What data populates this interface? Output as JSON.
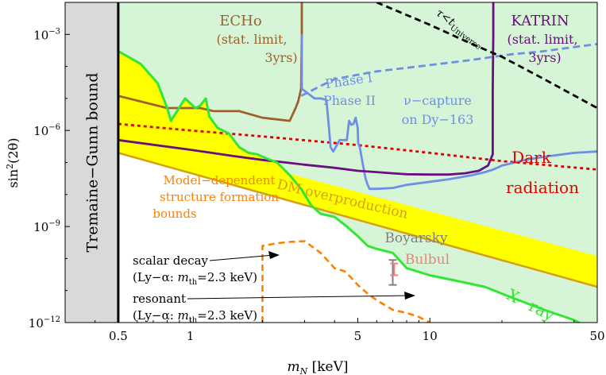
{
  "chart_data": {
    "type": "line",
    "xlabel_main": "m",
    "xlabel_sub": "N",
    "xlabel_unit": " [keV]",
    "ylabel_main": "sin",
    "ylabel_sup": "2",
    "ylabel_arg": "(2θ)",
    "x_scale": "log",
    "y_scale": "log",
    "xlim": [
      0.3,
      50
    ],
    "ylim": [
      1e-12,
      0.01
    ],
    "x_ticks": [
      {
        "value": 0.5,
        "label": "0.5"
      },
      {
        "value": 1,
        "label": "1"
      },
      {
        "value": 5,
        "label": "5"
      },
      {
        "value": 10,
        "label": "10"
      },
      {
        "value": 50,
        "label": "50"
      }
    ],
    "y_ticks": [
      {
        "value": 1e-12,
        "base": "10",
        "exp": "−12"
      },
      {
        "value": 1e-09,
        "base": "10",
        "exp": "−9"
      },
      {
        "value": 1e-06,
        "base": "10",
        "exp": "−6"
      },
      {
        "value": 0.001,
        "base": "10",
        "exp": "−3"
      }
    ],
    "colors": {
      "excluded_fill": "#d6f5d6",
      "yellow_fill": "#ffff00",
      "gray_band": "#d9d9d9",
      "xray": "#33e633",
      "tremaine_line": "#000000",
      "dm_over_line": "#d4a017",
      "echo": "#a0602a",
      "katrin": "#6a0f80",
      "phase": "#6f8fe6",
      "dark_radiation": "#e00000",
      "structure": "#ff8000",
      "lifetime": "#000000",
      "boyarsky": "#808080",
      "bulbul": "#f08080"
    },
    "series": [
      {
        "name": "X-ray",
        "x": [
          0.5,
          0.62,
          0.73,
          0.8,
          0.83,
          0.88,
          0.95,
          1.0,
          1.05,
          1.1,
          1.16,
          1.2,
          1.3,
          1.45,
          1.6,
          1.75,
          1.9,
          2.1,
          2.3,
          2.6,
          2.9,
          3.2,
          3.5,
          4.0,
          4.5,
          5.0,
          5.5,
          6.0,
          7.0,
          8.0,
          10.0,
          13.0,
          17.0,
          22.0,
          30.0,
          40.0,
          50.0
        ],
        "y": [
          0.0003,
          0.00012,
          3e-05,
          5e-06,
          2e-06,
          4e-06,
          1e-05,
          7e-06,
          5e-06,
          6e-06,
          1e-05,
          2.7e-06,
          1.2e-06,
          8e-07,
          3e-07,
          2e-07,
          1.8e-07,
          1.3e-07,
          1e-07,
          4e-08,
          1.5e-08,
          4.5e-09,
          2.5e-09,
          2e-09,
          1e-09,
          5e-10,
          2.5e-10,
          2e-10,
          1.5e-10,
          5e-11,
          3e-11,
          2e-11,
          1.3e-11,
          6e-12,
          2.5e-12,
          1.2e-12,
          5e-13
        ]
      },
      {
        "name": "Tremaine-Gunn bound",
        "x": [
          0.5,
          0.5
        ],
        "y": [
          1e-12,
          0.01
        ]
      },
      {
        "name": "DM overproduction",
        "x": [
          0.5,
          50
        ],
        "y": [
          2e-07,
          1.3e-11
        ]
      },
      {
        "name": "DM overproduction upper",
        "x": [
          0.5,
          50
        ],
        "y": [
          1.2e-06,
          1.2e-10
        ]
      },
      {
        "name": "ECHo",
        "x": [
          0.5,
          0.8,
          1.1,
          1.25,
          1.6,
          2.0,
          2.6,
          2.75,
          2.82,
          2.9,
          2.92,
          2.92
        ],
        "y": [
          1.2e-05,
          5e-06,
          5e-06,
          4e-06,
          4e-06,
          2.5e-06,
          2e-06,
          5e-06,
          8e-06,
          2e-05,
          0.001,
          0.01
        ]
      },
      {
        "name": "KATRIN",
        "x": [
          0.5,
          1.0,
          1.5,
          2.0,
          2.5,
          3.0,
          4.0,
          5.0,
          6.0,
          7.0,
          8.0,
          10.0,
          12.0,
          14.0,
          16.0,
          17.5,
          18.3,
          18.3,
          18.4,
          18.4
        ],
        "y": [
          5e-07,
          2.5e-07,
          1.6e-07,
          1.2e-07,
          1e-07,
          8.5e-08,
          6.8e-08,
          5.5e-08,
          5e-08,
          4.6e-08,
          4.3e-08,
          4.2e-08,
          4.2e-08,
          4.6e-08,
          5.5e-08,
          8e-08,
          1.8e-07,
          2e-05,
          0.001,
          0.01
        ]
      },
      {
        "name": "Phase I",
        "x": [
          2.9,
          3.4,
          4.0,
          5.0,
          6.0,
          8.0,
          10.0,
          12.0,
          15.0,
          18.4,
          22.0,
          30.0,
          40.0,
          50.0
        ],
        "y": [
          1.2e-05,
          2.2e-05,
          4e-05,
          5.5e-05,
          7e-05,
          9e-05,
          0.00011,
          0.00013,
          0.00016,
          0.0002,
          0.00024,
          0.0003,
          0.0004,
          0.0005
        ]
      },
      {
        "name": "Phase II",
        "x": [
          2.92,
          2.92,
          3.3,
          3.5,
          3.7,
          3.8,
          3.85,
          3.95,
          4.2,
          4.5,
          4.6,
          4.7,
          4.8,
          4.9,
          5.0,
          5.02,
          5.1,
          5.2,
          5.3,
          5.4,
          5.5,
          5.6,
          6.0,
          7.0,
          8.0,
          10.0,
          12.0,
          15.0,
          17.0,
          18.4,
          20.0,
          25.0,
          30.0,
          40.0,
          50.0
        ],
        "y": [
          0.001,
          2e-05,
          1e-05,
          1e-05,
          9e-06,
          1e-06,
          3e-07,
          2.2e-07,
          5e-07,
          5e-07,
          2e-06,
          1.5e-06,
          1.6e-06,
          2.5e-06,
          1.2e-06,
          4e-07,
          3e-07,
          1.3e-07,
          6e-08,
          3e-08,
          2e-08,
          1.5e-08,
          1.5e-08,
          1.6e-08,
          2e-08,
          2.5e-08,
          3e-08,
          4e-08,
          5e-08,
          6e-08,
          8e-08,
          1.2e-07,
          1.5e-07,
          2e-07,
          2.2e-07
        ]
      },
      {
        "name": "Dark radiation",
        "x": [
          0.5,
          1.0,
          2.0,
          5.0,
          10.0,
          20.0,
          50.0
        ],
        "y": [
          1.6e-06,
          1e-06,
          6.5e-07,
          3.5e-07,
          2e-07,
          1.1e-07,
          6e-08
        ]
      },
      {
        "name": "Structure formation",
        "x": [
          2.0,
          2.0,
          2.3,
          2.6,
          3.0,
          3.5,
          4.0,
          4.4,
          4.7,
          5.0,
          5.5,
          6.0,
          7.0,
          8.0,
          9.0,
          10.0
        ],
        "y": [
          1e-12,
          2.5e-10,
          3e-10,
          3.3e-10,
          3.5e-10,
          1.5e-10,
          5e-11,
          4e-11,
          2.5e-11,
          1.5e-11,
          8e-12,
          5e-12,
          2.5e-12,
          2e-12,
          1.5e-12,
          1e-12
        ]
      },
      {
        "name": "τ<t_Universe",
        "x": [
          6.0,
          10.0,
          15.0,
          20.0,
          30.0,
          50.0
        ],
        "y": [
          0.01,
          0.002,
          0.0005,
          0.0002,
          4e-05,
          5e-06
        ]
      }
    ],
    "annotations": {
      "tremaine_gunn": "Tremaine−Gunn bound",
      "echo_name": "ECHo",
      "echo_line2": "(stat. limit,",
      "echo_line3": "3yrs)",
      "katrin_name": "KATRIN",
      "katrin_line2": "(stat. limit,",
      "katrin_line3": "3yrs)",
      "tau_main": "τ<t",
      "tau_sub": "Universe",
      "phase1": "Phase I",
      "phase2": "Phase II",
      "nu_capture1": "ν−capture",
      "nu_capture2": "on Dy−163",
      "dark1": "Dark",
      "dark2": "radiation",
      "dm_over": "DM overproduction",
      "model1": "Model−dependent",
      "model2": "structure formation",
      "model3": "bounds",
      "boyarsky": "Boyarsky",
      "bulbul": "Bulbul",
      "xray": "X−ray",
      "scalar_line1": "scalar decay",
      "scalar_line2_pre": "(Ly−α: ",
      "scalar_line2_m": "m",
      "scalar_line2_sub": "th",
      "scalar_line2_post": "=2.3 keV)",
      "resonant_line1": "resonant",
      "resonant_line2_pre": "(Ly−α: ",
      "resonant_line2_m": "m",
      "resonant_line2_sub": "th",
      "resonant_line2_post": "=2.3 keV)"
    },
    "boyarsky_point": {
      "x": 7.0,
      "y_low": 1.5e-11,
      "y_high": 9e-11,
      "y_mid": 4e-11
    },
    "bulbul_point": {
      "x": 7.1,
      "y_low": 3e-11,
      "y_high": 7e-11,
      "y_mid": 4.5e-11
    },
    "grid": false,
    "legend": "none"
  }
}
